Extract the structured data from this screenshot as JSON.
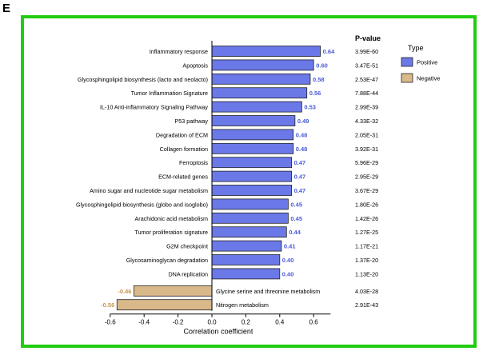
{
  "panel_label": "E",
  "chart_data": {
    "type": "bar",
    "orientation": "horizontal",
    "title": "",
    "xlabel": "Correlation coefficient",
    "ylabel": "",
    "xlim": [
      -0.6,
      0.7
    ],
    "xticks": [
      "-0.6",
      "-0.4",
      "-0.2",
      "0.0",
      "0.2",
      "0.4",
      "0.6"
    ],
    "pvalue_header": "P-value",
    "legend": {
      "title": "Type",
      "position": "right",
      "entries": [
        {
          "label": "Positive",
          "color": "#6b78e8"
        },
        {
          "label": "Negative",
          "color": "#d9b88a"
        }
      ]
    },
    "colors": {
      "positive": "#6b78e8",
      "negative": "#d9b88a",
      "positive_label": "#4a5ad8",
      "negative_label": "#c8964a"
    },
    "bars": [
      {
        "category": "Inflammatory response",
        "value": 0.64,
        "label": "0.64",
        "pvalue": "3.99E-60",
        "type": "Positive"
      },
      {
        "category": "Apoptosis",
        "value": 0.6,
        "label": "0.60",
        "pvalue": "3.47E-51",
        "type": "Positive"
      },
      {
        "category": "Glycosphingolipid biosynthesis (lacto and neolacto)",
        "value": 0.58,
        "label": "0.58",
        "pvalue": "2.53E-47",
        "type": "Positive"
      },
      {
        "category": "Tumor Inflammation Signature",
        "value": 0.56,
        "label": "0.56",
        "pvalue": "7.88E-44",
        "type": "Positive"
      },
      {
        "category": "IL-10 Anti-inflammatory Signaling Pathway",
        "value": 0.53,
        "label": "0.53",
        "pvalue": "2.99E-39",
        "type": "Positive"
      },
      {
        "category": "P53 pathway",
        "value": 0.49,
        "label": "0.49",
        "pvalue": "4.33E-32",
        "type": "Positive"
      },
      {
        "category": "Degradation of ECM",
        "value": 0.48,
        "label": "0.48",
        "pvalue": "2.05E-31",
        "type": "Positive"
      },
      {
        "category": "Collagen formation",
        "value": 0.48,
        "label": "0.48",
        "pvalue": "3.92E-31",
        "type": "Positive"
      },
      {
        "category": "Ferroptosis",
        "value": 0.47,
        "label": "0.47",
        "pvalue": "5.96E-29",
        "type": "Positive"
      },
      {
        "category": "ECM-related genes",
        "value": 0.47,
        "label": "0.47",
        "pvalue": "2.95E-29",
        "type": "Positive"
      },
      {
        "category": "Amino sugar and nucleotide sugar metabolism",
        "value": 0.47,
        "label": "0.47",
        "pvalue": "3.67E-29",
        "type": "Positive"
      },
      {
        "category": "Glycosphingolipid biosynthesis (globo and isoglobo)",
        "value": 0.45,
        "label": "0.45",
        "pvalue": "1.80E-26",
        "type": "Positive"
      },
      {
        "category": "Arachidonic acid metabolism",
        "value": 0.45,
        "label": "0.45",
        "pvalue": "1.42E-26",
        "type": "Positive"
      },
      {
        "category": "Tumor proliferation signature",
        "value": 0.44,
        "label": "0.44",
        "pvalue": "1.27E-25",
        "type": "Positive"
      },
      {
        "category": "G2M checkpoint",
        "value": 0.41,
        "label": "0.41",
        "pvalue": "1.17E-21",
        "type": "Positive"
      },
      {
        "category": "Glycosaminoglycan degradation",
        "value": 0.4,
        "label": "0.40",
        "pvalue": "1.37E-20",
        "type": "Positive"
      },
      {
        "category": "DNA replication",
        "value": 0.4,
        "label": "0.40",
        "pvalue": "1.13E-20",
        "type": "Positive"
      },
      {
        "category": "Glycine serine and threonine metabolism",
        "value": -0.46,
        "label": "-0.46",
        "pvalue": "4.03E-28",
        "type": "Negative"
      },
      {
        "category": "Nitrogen metabolism",
        "value": -0.56,
        "label": "-0.56",
        "pvalue": "2.91E-43",
        "type": "Negative"
      }
    ]
  }
}
